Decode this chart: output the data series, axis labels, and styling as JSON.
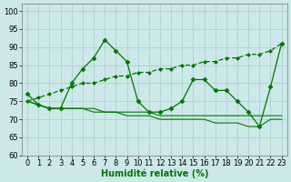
{
  "x": [
    0,
    1,
    2,
    3,
    4,
    5,
    6,
    7,
    8,
    9,
    10,
    11,
    12,
    13,
    14,
    15,
    16,
    17,
    18,
    19,
    20,
    21,
    22,
    23
  ],
  "line_jagged": [
    77,
    74,
    73,
    73,
    80,
    84,
    87,
    92,
    89,
    86,
    75,
    72,
    72,
    73,
    75,
    81,
    81,
    78,
    78,
    75,
    72,
    68,
    79,
    91
  ],
  "line_upper": [
    75,
    76,
    77,
    78,
    79,
    80,
    80,
    81,
    82,
    82,
    83,
    83,
    84,
    84,
    85,
    85,
    86,
    86,
    87,
    87,
    88,
    88,
    89,
    91
  ],
  "line_mid": [
    75,
    74,
    73,
    73,
    73,
    73,
    73,
    72,
    72,
    72,
    72,
    72,
    71,
    71,
    71,
    71,
    71,
    71,
    71,
    71,
    71,
    71,
    71,
    71
  ],
  "line_low": [
    75,
    74,
    73,
    73,
    73,
    73,
    72,
    72,
    72,
    71,
    71,
    71,
    70,
    70,
    70,
    70,
    70,
    69,
    69,
    69,
    68,
    68,
    70,
    70
  ],
  "background_color": "#cce8e8",
  "grid_color": "#a8cccc",
  "line_color": "#007700",
  "xlabel": "Humidité relative (%)",
  "xlim": [
    -0.5,
    23.5
  ],
  "ylim": [
    60,
    102
  ],
  "yticks": [
    60,
    65,
    70,
    75,
    80,
    85,
    90,
    95,
    100
  ],
  "xticks": [
    0,
    1,
    2,
    3,
    4,
    5,
    6,
    7,
    8,
    9,
    10,
    11,
    12,
    13,
    14,
    15,
    16,
    17,
    18,
    19,
    20,
    21,
    22,
    23
  ],
  "xlabel_fontsize": 7,
  "tick_fontsize": 6
}
